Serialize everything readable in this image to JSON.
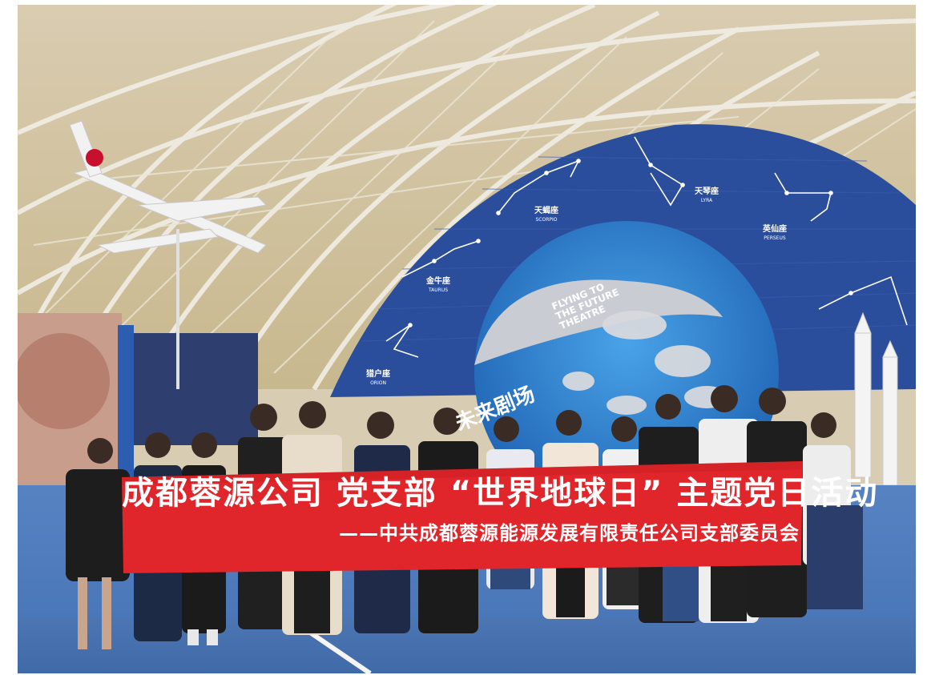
{
  "scene": {
    "description_hidden": "",
    "colors": {
      "dome_frame": "#e9e6dc",
      "dome_panel": "#cdbf9a",
      "starwall": "#2b4e9c",
      "globe_ocean": "#2e83d0",
      "banner_red": "#e0262b",
      "floor": "#4d77b8"
    }
  },
  "banner": {
    "line1": "成都蓉源公司  党支部 “世界地球日” 主题党日活动",
    "line2": "——中共成都蓉源能源发展有限责任公司支部委员会"
  },
  "theatre_sign": {
    "chinese": "未来剧场",
    "english_line1": "FLYING TO",
    "english_line2": "THE FUTURE",
    "english_line3": "THEATRE"
  },
  "constellations": [
    {
      "name": "天蝎座",
      "latin": "SCORPIO"
    },
    {
      "name": "天琴座",
      "latin": "LYRA"
    },
    {
      "name": "英仙座",
      "latin": "PERSEUS"
    },
    {
      "name": "金牛座",
      "latin": "TAURUS"
    },
    {
      "name": "猎户座",
      "latin": "ORION"
    }
  ]
}
